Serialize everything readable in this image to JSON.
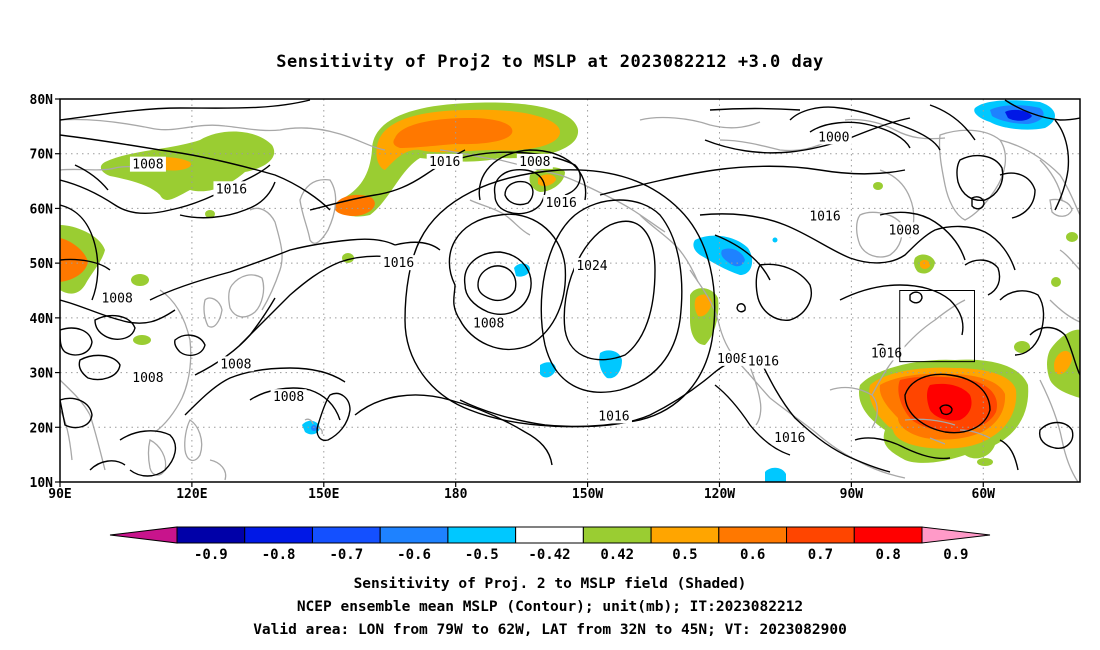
{
  "title": "Sensitivity of Proj2 to MSLP at 2023082212 +3.0 day",
  "map": {
    "lon_ticks": [
      "90E",
      "120E",
      "150E",
      "180",
      "150W",
      "120W",
      "90W",
      "60W"
    ],
    "lat_ticks": [
      "80N",
      "70N",
      "60N",
      "50N",
      "40N",
      "30N",
      "20N",
      "10N"
    ],
    "grid": "dotted",
    "valid_area": {
      "lon": [
        "79W",
        "62W"
      ],
      "lat": [
        "32N",
        "45N"
      ]
    }
  },
  "contour_labels": [
    {
      "text": "1008",
      "lon": 110,
      "lat": 68
    },
    {
      "text": "1016",
      "lon": 129,
      "lat": 63.5
    },
    {
      "text": "1016",
      "lon": 177.5,
      "lat": 68.5
    },
    {
      "text": "1008",
      "lon": 198,
      "lat": 68.5
    },
    {
      "text": "1016",
      "lon": 204,
      "lat": 61
    },
    {
      "text": "1024",
      "lon": 211,
      "lat": 49.5
    },
    {
      "text": "1016",
      "lon": 167,
      "lat": 50
    },
    {
      "text": "1016",
      "lon": 264,
      "lat": 58.5
    },
    {
      "text": "1000",
      "lon": 266,
      "lat": 73
    },
    {
      "text": "1008",
      "lon": 282,
      "lat": 56
    },
    {
      "text": "1008",
      "lon": 103,
      "lat": 43.5
    },
    {
      "text": "1008",
      "lon": 187.5,
      "lat": 39
    },
    {
      "text": "1008",
      "lon": 243,
      "lat": 32.5
    },
    {
      "text": "1016",
      "lon": 250,
      "lat": 32
    },
    {
      "text": "1016",
      "lon": 278,
      "lat": 33.5
    },
    {
      "text": "1008",
      "lon": 130,
      "lat": 31.5
    },
    {
      "text": "1008",
      "lon": 110,
      "lat": 29
    },
    {
      "text": "1008",
      "lon": 142,
      "lat": 25.5
    },
    {
      "text": "1016",
      "lon": 216,
      "lat": 22
    },
    {
      "text": "1016",
      "lon": 256,
      "lat": 18
    }
  ],
  "colorbar": {
    "labels": [
      "-0.9",
      "-0.8",
      "-0.7",
      "-0.6",
      "-0.5",
      "-0.42",
      "0.42",
      "0.5",
      "0.6",
      "0.7",
      "0.8",
      "0.9"
    ],
    "colors": [
      "#0000a8",
      "#0018e6",
      "#1450ff",
      "#1e82ff",
      "#00c8ff",
      "#ffffff",
      "#9acd32",
      "#ffa500",
      "#ff7800",
      "#ff4500",
      "#ff0000"
    ],
    "low_color": "#c8148c",
    "high_color": "#ff9ac8"
  },
  "colors": {
    "contour": "#000000",
    "coast": "#a8a8a8",
    "grid": "#9c9c9c"
  },
  "captions": [
    "Sensitivity of Proj. 2 to MSLP field (Shaded)",
    "NCEP ensemble mean MSLP (Contour); unit(mb); IT:2023082212",
    "Valid area: LON from 79W to 62W, LAT from 32N to 45N; VT: 2023082900"
  ]
}
